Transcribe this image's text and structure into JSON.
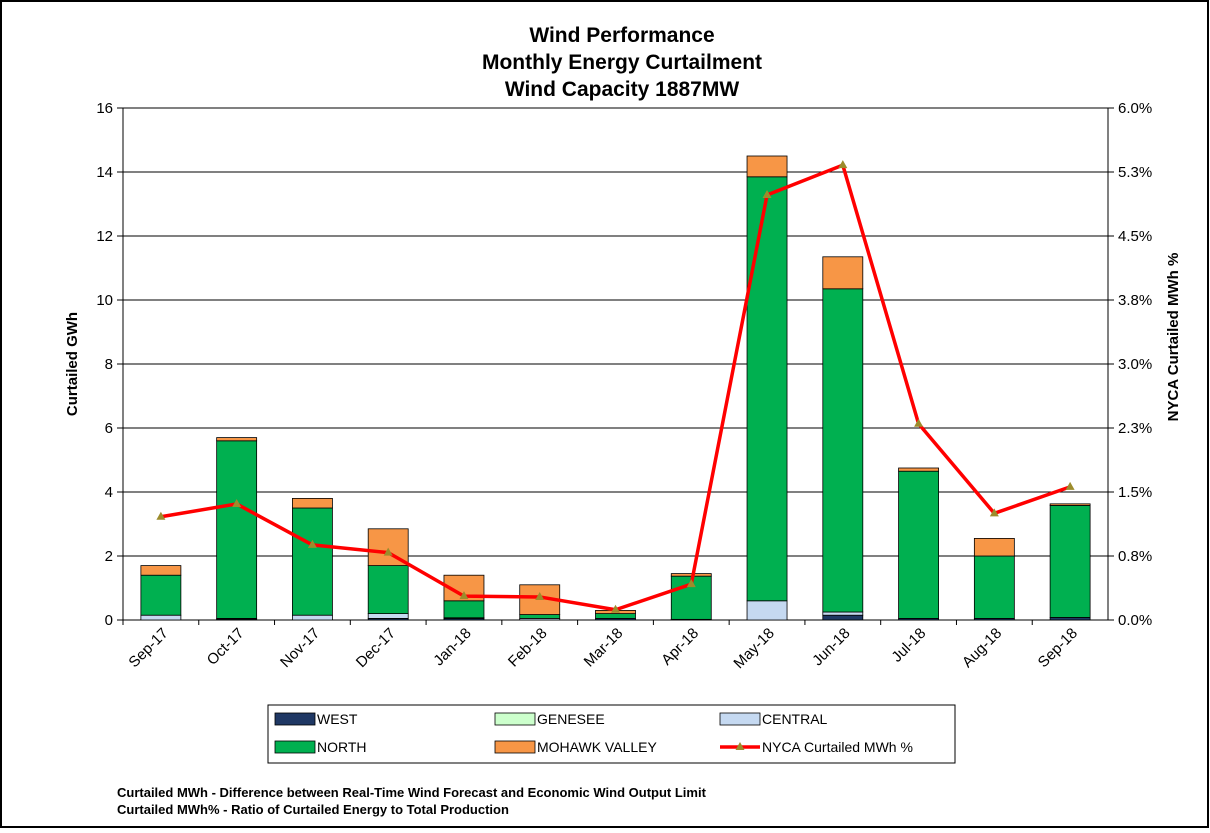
{
  "chart_data": {
    "type": "stacked-bar-line",
    "title": [
      "Wind Performance",
      "Monthly Energy Curtailment",
      "Wind Capacity 1887MW"
    ],
    "y_label": "Curtailed GWh",
    "y2_label": "NYCA Curtailed MWh %",
    "categories": [
      "Sep-17",
      "Oct-17",
      "Nov-17",
      "Dec-17",
      "Jan-18",
      "Feb-18",
      "Mar-18",
      "Apr-18",
      "May-18",
      "Jun-18",
      "Jul-18",
      "Aug-18",
      "Sep-18"
    ],
    "series": [
      {
        "name": "WEST",
        "color": "#1f3864",
        "type": "bar",
        "values": [
          0,
          0.03,
          0,
          0.05,
          0.05,
          0,
          0.05,
          0,
          0,
          0.15,
          0.05,
          0.05,
          0.08
        ]
      },
      {
        "name": "GENESEE",
        "color": "#ccffcc",
        "type": "bar",
        "values": [
          0,
          0,
          0,
          0,
          0,
          0,
          0,
          0,
          0,
          0,
          0,
          0,
          0
        ]
      },
      {
        "name": "CENTRAL",
        "color": "#c5d9f1",
        "type": "bar",
        "values": [
          0.15,
          0.02,
          0.15,
          0.15,
          0.02,
          0.05,
          0,
          0.02,
          0.6,
          0.1,
          0,
          0,
          0
        ]
      },
      {
        "name": "NORTH",
        "color": "#00b050",
        "type": "bar",
        "values": [
          1.25,
          5.55,
          3.35,
          1.5,
          0.53,
          0.12,
          0.15,
          1.35,
          13.25,
          10.1,
          4.6,
          1.95,
          3.5
        ]
      },
      {
        "name": "MOHAWK VALLEY",
        "color": "#f79646",
        "type": "bar",
        "values": [
          0.3,
          0.1,
          0.3,
          1.15,
          0.8,
          0.93,
          0.1,
          0.08,
          0.65,
          1.0,
          0.1,
          0.55,
          0.05
        ]
      },
      {
        "name": "NYCA Curtailed MWh %",
        "color": "#ff0000",
        "marker_color": "#9c8c2c",
        "type": "line",
        "axis": "y2",
        "values": [
          1.21,
          1.36,
          0.88,
          0.79,
          0.28,
          0.27,
          0.12,
          0.42,
          4.98,
          5.33,
          2.3,
          1.25,
          1.56
        ]
      }
    ],
    "ylim": [
      0,
      16
    ],
    "yticks": [
      0,
      2,
      4,
      6,
      8,
      10,
      12,
      14,
      16
    ],
    "y2lim": [
      0,
      6
    ],
    "y2ticks": [
      {
        "value": 0,
        "label": "0.0%"
      },
      {
        "value": 0.75,
        "label": "0.8%"
      },
      {
        "value": 1.5,
        "label": "1.5%"
      },
      {
        "value": 2.25,
        "label": "2.3%"
      },
      {
        "value": 3,
        "label": "3.0%"
      },
      {
        "value": 3.75,
        "label": "3.8%"
      },
      {
        "value": 4.5,
        "label": "4.5%"
      },
      {
        "value": 5.25,
        "label": "5.3%"
      },
      {
        "value": 6,
        "label": "6.0%"
      }
    ],
    "grid": true,
    "legend": "bottom",
    "notes": [
      "Curtailed MWh - Difference between Real-Time Wind Forecast and Economic Wind Output Limit",
      "Curtailed MWh% - Ratio of Curtailed Energy to Total Production"
    ]
  }
}
